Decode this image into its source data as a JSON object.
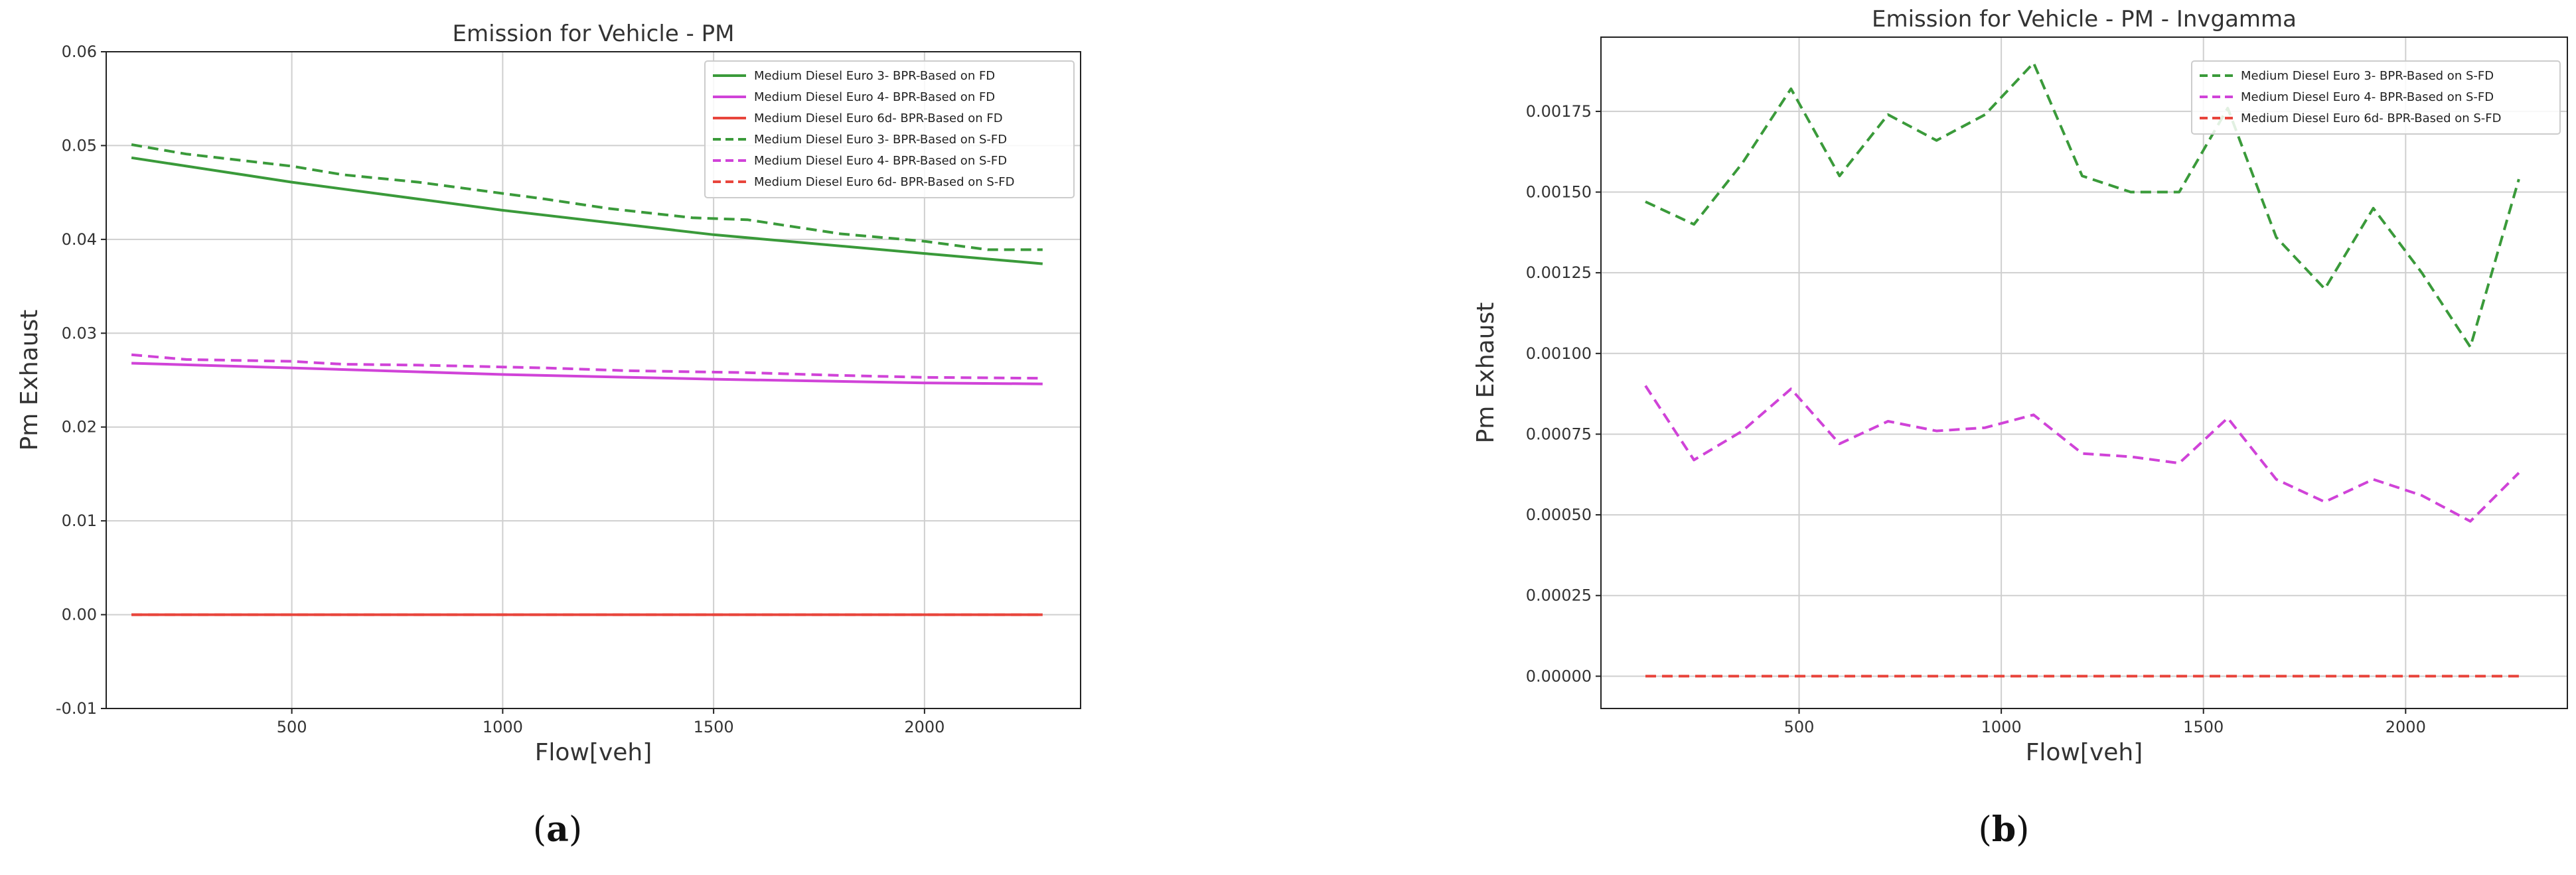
{
  "colors": {
    "green": "#3a9a3a",
    "magenta": "#d043d8",
    "red": "#e8453c",
    "axis": "#222222",
    "grid": "#cfcfcf"
  },
  "chart_data": [
    {
      "type": "line",
      "panel_label": "a",
      "title": "Emission for Vehicle - PM",
      "xlabel": "Flow[veh]",
      "ylabel": "Pm Exhaust",
      "xlim": [
        60,
        2370
      ],
      "ylim": [
        -0.01,
        0.06
      ],
      "xticks": [
        500,
        1000,
        1500,
        2000
      ],
      "xtick_labels": [
        "500",
        "1000",
        "1500",
        "2000"
      ],
      "yticks": [
        -0.01,
        0.0,
        0.01,
        0.02,
        0.03,
        0.04,
        0.05,
        0.06
      ],
      "ytick_labels": [
        "-0.01",
        "0.00",
        "0.01",
        "0.02",
        "0.03",
        "0.04",
        "0.05",
        "0.06"
      ],
      "grid": true,
      "legend_position": "top-right",
      "series": [
        {
          "name": "Medium Diesel Euro 3- BPR-Based on FD",
          "color": "green",
          "dash": "solid",
          "x": [
            120,
            500,
            1000,
            1500,
            2000,
            2280
          ],
          "y": [
            0.0487,
            0.0461,
            0.0431,
            0.0405,
            0.0385,
            0.0374
          ]
        },
        {
          "name": "Medium Diesel Euro 4- BPR-Based on FD",
          "color": "magenta",
          "dash": "solid",
          "x": [
            120,
            500,
            1000,
            1500,
            2000,
            2280
          ],
          "y": [
            0.0268,
            0.0263,
            0.0256,
            0.0251,
            0.0247,
            0.0246
          ]
        },
        {
          "name": "Medium Diesel Euro 6d- BPR-Based on FD",
          "color": "red",
          "dash": "solid",
          "x": [
            120,
            2280
          ],
          "y": [
            0.0,
            0.0
          ]
        },
        {
          "name": "Medium Diesel Euro 3- BPR-Based on S-FD",
          "color": "green",
          "dash": "dashed",
          "x": [
            120,
            250,
            500,
            620,
            800,
            1000,
            1100,
            1250,
            1450,
            1580,
            1800,
            2000,
            2150,
            2280
          ],
          "y": [
            0.0501,
            0.0491,
            0.0478,
            0.0469,
            0.0461,
            0.0449,
            0.0443,
            0.0433,
            0.0423,
            0.0421,
            0.0406,
            0.0398,
            0.0389,
            0.0389
          ]
        },
        {
          "name": "Medium Diesel Euro 4- BPR-Based on S-FD",
          "color": "magenta",
          "dash": "dashed",
          "x": [
            120,
            250,
            500,
            620,
            800,
            1000,
            1100,
            1300,
            1580,
            1800,
            2000,
            2280
          ],
          "y": [
            0.0277,
            0.0272,
            0.027,
            0.0267,
            0.0266,
            0.0264,
            0.0263,
            0.026,
            0.0258,
            0.0255,
            0.0253,
            0.0252
          ]
        },
        {
          "name": "Medium Diesel Euro 6d- BPR-Based on S-FD",
          "color": "red",
          "dash": "dashed",
          "x": [
            120,
            2280
          ],
          "y": [
            0.0,
            0.0
          ]
        }
      ]
    },
    {
      "type": "line",
      "panel_label": "b",
      "title": "Emission for Vehicle - PM - Invgamma",
      "xlabel": "Flow[veh]",
      "ylabel": "Pm Exhaust",
      "xlim": [
        10,
        2400
      ],
      "ylim": [
        -0.0001,
        0.00198
      ],
      "xticks": [
        500,
        1000,
        1500,
        2000
      ],
      "xtick_labels": [
        "500",
        "1000",
        "1500",
        "2000"
      ],
      "yticks": [
        0.0,
        0.00025,
        0.0005,
        0.00075,
        0.001,
        0.00125,
        0.0015,
        0.00175
      ],
      "ytick_labels": [
        "0.00000",
        "0.00025",
        "0.00050",
        "0.00075",
        "0.00100",
        "0.00125",
        "0.00150",
        "0.00175"
      ],
      "grid": true,
      "legend_position": "top-right",
      "series": [
        {
          "name": "Medium Diesel Euro 3- BPR-Based on S-FD",
          "color": "green",
          "dash": "dashed",
          "x": [
            120,
            240,
            360,
            480,
            600,
            720,
            840,
            960,
            1080,
            1200,
            1320,
            1440,
            1560,
            1680,
            1800,
            1920,
            2040,
            2160,
            2280
          ],
          "y": [
            0.00147,
            0.0014,
            0.00159,
            0.00182,
            0.00155,
            0.00174,
            0.00166,
            0.00174,
            0.0019,
            0.00155,
            0.0015,
            0.0015,
            0.00176,
            0.00136,
            0.0012,
            0.00145,
            0.00125,
            0.00102,
            0.00154
          ]
        },
        {
          "name": "Medium Diesel Euro 4- BPR-Based on S-FD",
          "color": "magenta",
          "dash": "dashed",
          "x": [
            120,
            240,
            360,
            480,
            600,
            720,
            840,
            960,
            1080,
            1200,
            1320,
            1440,
            1560,
            1680,
            1800,
            1920,
            2040,
            2160,
            2280
          ],
          "y": [
            0.0009,
            0.00067,
            0.00076,
            0.00089,
            0.00072,
            0.00079,
            0.00076,
            0.00077,
            0.00081,
            0.00069,
            0.00068,
            0.00066,
            0.0008,
            0.00061,
            0.00054,
            0.00061,
            0.00056,
            0.00048,
            0.00063
          ]
        },
        {
          "name": "Medium Diesel Euro 6d- BPR-Based on S-FD",
          "color": "red",
          "dash": "dashed",
          "x": [
            120,
            2280
          ],
          "y": [
            0.0,
            0.0
          ]
        }
      ]
    }
  ]
}
